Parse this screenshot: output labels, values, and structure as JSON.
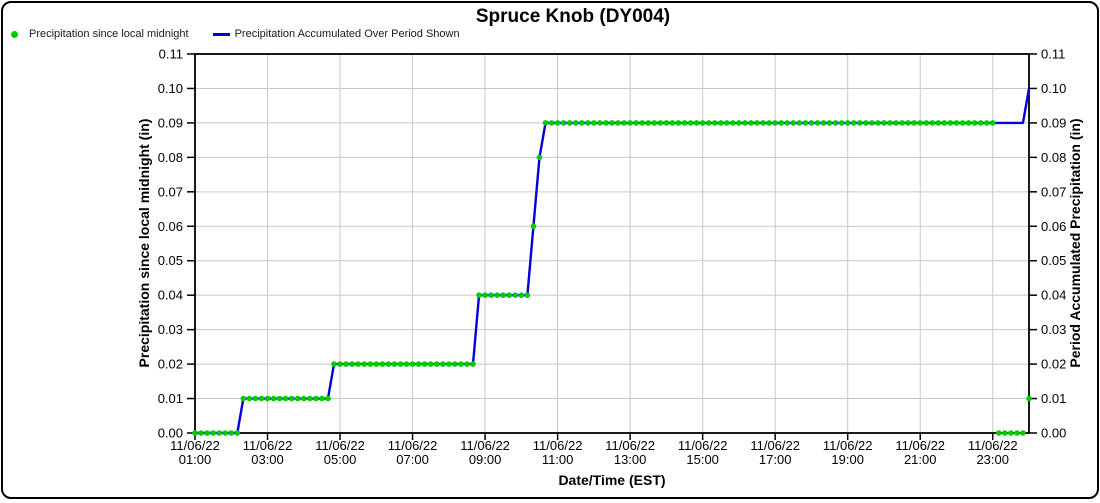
{
  "chart_data": {
    "type": "line",
    "title": "Spruce Knob (DY004)",
    "xlabel": "Date/Time (EST)",
    "ylabel_left": "Precipitation since local midnight (in)",
    "ylabel_right": "Period Accumulated Precipitation (in)",
    "ylim": [
      0,
      0.11
    ],
    "y_tick_step": 0.01,
    "x_range_hours": [
      1,
      24
    ],
    "grid": true,
    "legend_position": "top-left",
    "colors": {
      "grid": "#C8C8C8",
      "axis": "#000000",
      "text": "#000000",
      "background": "#FFFFFF",
      "frame_border": "#000000"
    },
    "y_ticks": [
      {
        "value": 0.0,
        "label": "0.00"
      },
      {
        "value": 0.01,
        "label": "0.01"
      },
      {
        "value": 0.02,
        "label": "0.02"
      },
      {
        "value": 0.03,
        "label": "0.03"
      },
      {
        "value": 0.04,
        "label": "0.04"
      },
      {
        "value": 0.05,
        "label": "0.05"
      },
      {
        "value": 0.06,
        "label": "0.06"
      },
      {
        "value": 0.07,
        "label": "0.07"
      },
      {
        "value": 0.08,
        "label": "0.08"
      },
      {
        "value": 0.09,
        "label": "0.09"
      },
      {
        "value": 0.1,
        "label": "0.10"
      },
      {
        "value": 0.11,
        "label": "0.11"
      }
    ],
    "x_ticks": [
      {
        "hour": 1,
        "date": "11/06/22",
        "time": "01:00"
      },
      {
        "hour": 3,
        "date": "11/06/22",
        "time": "03:00"
      },
      {
        "hour": 5,
        "date": "11/06/22",
        "time": "05:00"
      },
      {
        "hour": 7,
        "date": "11/06/22",
        "time": "07:00"
      },
      {
        "hour": 9,
        "date": "11/06/22",
        "time": "09:00"
      },
      {
        "hour": 11,
        "date": "11/06/22",
        "time": "11:00"
      },
      {
        "hour": 13,
        "date": "11/06/22",
        "time": "13:00"
      },
      {
        "hour": 15,
        "date": "11/06/22",
        "time": "15:00"
      },
      {
        "hour": 17,
        "date": "11/06/22",
        "time": "17:00"
      },
      {
        "hour": 19,
        "date": "11/06/22",
        "time": "19:00"
      },
      {
        "hour": 21,
        "date": "11/06/22",
        "time": "21:00"
      },
      {
        "hour": 23,
        "date": "11/06/22",
        "time": "23:00"
      }
    ],
    "series": [
      {
        "name": "Precipitation since local midnight",
        "marker": "dot",
        "color": "#00CC00",
        "interval_minutes": 10,
        "segments": [
          {
            "from": "01:00",
            "to": "02:10",
            "value": 0.0
          },
          {
            "from": "02:20",
            "to": "04:40",
            "value": 0.01
          },
          {
            "from": "04:50",
            "to": "08:40",
            "value": 0.02
          },
          {
            "from": "08:50",
            "to": "10:10",
            "value": 0.04
          },
          {
            "from": "10:20",
            "to": "10:20",
            "value": 0.06
          },
          {
            "from": "10:30",
            "to": "10:30",
            "value": 0.08
          },
          {
            "from": "10:40",
            "to": "23:00",
            "value": 0.09
          },
          {
            "from": "23:10",
            "to": "23:50",
            "value": 0.0
          },
          {
            "from": "24:00",
            "to": "24:00",
            "value": 0.01
          }
        ]
      },
      {
        "name": "Precipitation Accumulated Over Period Shown",
        "marker": "line",
        "color": "#0000DD",
        "points": [
          [
            "01:00",
            0.0
          ],
          [
            "02:10",
            0.0
          ],
          [
            "02:20",
            0.01
          ],
          [
            "04:40",
            0.01
          ],
          [
            "04:50",
            0.02
          ],
          [
            "08:40",
            0.02
          ],
          [
            "08:50",
            0.04
          ],
          [
            "10:10",
            0.04
          ],
          [
            "10:20",
            0.06
          ],
          [
            "10:30",
            0.08
          ],
          [
            "10:40",
            0.09
          ],
          [
            "23:50",
            0.09
          ],
          [
            "24:00",
            0.1
          ]
        ]
      }
    ]
  }
}
